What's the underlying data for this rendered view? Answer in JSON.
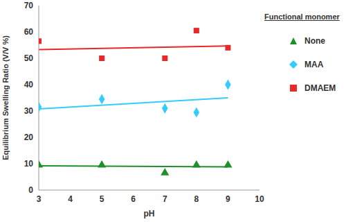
{
  "chart_data": {
    "type": "scatter",
    "x_label": "pH",
    "y_label": "Equilibrium Swelling Ratio (V/V %)",
    "legend_title": "Functional monomer",
    "legend": "right",
    "grid": false,
    "xlim": [
      3,
      10
    ],
    "xticks": [
      3,
      4,
      5,
      6,
      7,
      8,
      9,
      10
    ],
    "ylim": [
      0,
      70
    ],
    "yticks": [
      0,
      10,
      20,
      30,
      40,
      50,
      60,
      70
    ],
    "x": [
      3,
      5,
      7,
      8,
      9
    ],
    "series": [
      {
        "name": "None",
        "color": "#1f8f2a",
        "marker": "triangle",
        "values": [
          9.5,
          9.5,
          6.5,
          9.5,
          9.5
        ],
        "trend": {
          "x": [
            3,
            9
          ],
          "values": [
            9.2,
            8.8
          ]
        }
      },
      {
        "name": "MAA",
        "color": "#33ccff",
        "marker": "diamond",
        "values": [
          31.5,
          34.5,
          31,
          29.5,
          40
        ],
        "trend": {
          "x": [
            3,
            9
          ],
          "values": [
            30.8,
            35
          ]
        }
      },
      {
        "name": "DMAEM",
        "color": "#e8282a",
        "marker": "square",
        "values": [
          56.5,
          50,
          50,
          60.5,
          54
        ],
        "trend": {
          "x": [
            3,
            9
          ],
          "values": [
            53.3,
            54.7
          ]
        }
      }
    ]
  }
}
